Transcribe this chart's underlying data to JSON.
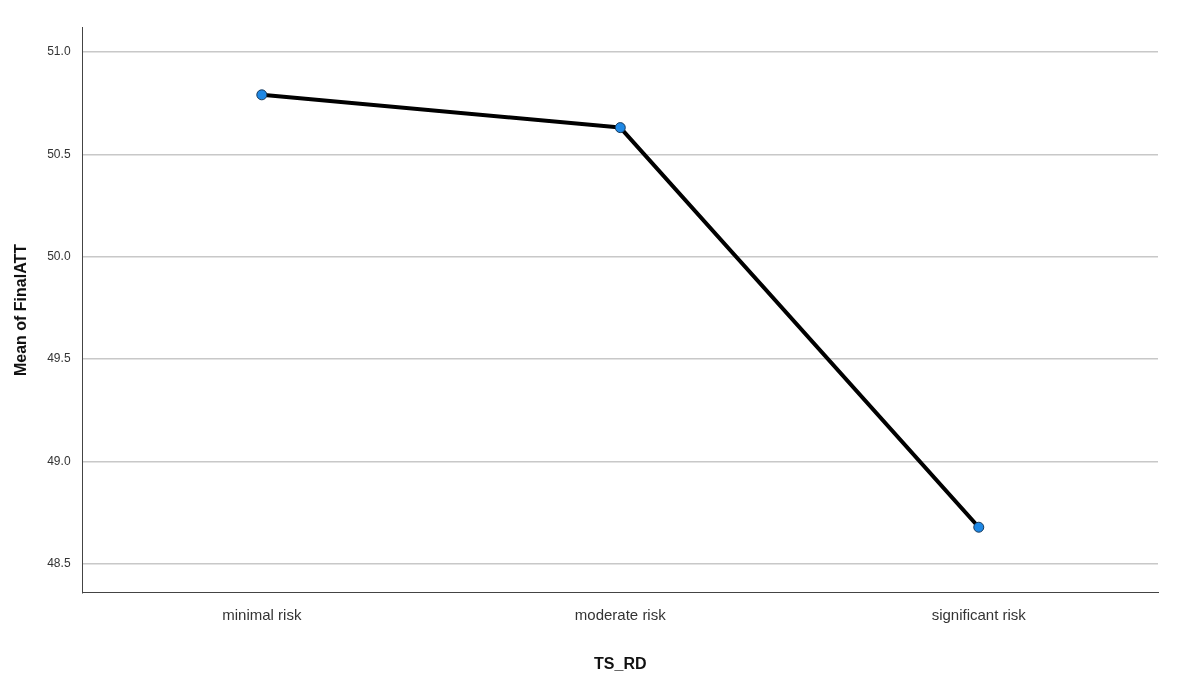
{
  "chart_data": {
    "type": "line",
    "xlabel": "TS_RD",
    "ylabel": "Mean of FinalATT",
    "categories": [
      "minimal risk",
      "moderate risk",
      "significant risk"
    ],
    "series": [
      {
        "color": "#000000",
        "values": [
          50.79,
          50.63,
          48.68
        ]
      }
    ],
    "ylim": [
      48.36,
      51.12
    ],
    "yticks": [
      48.5,
      {
        "value": 49,
        "label": "49.0"
      },
      49.5,
      {
        "value": 50,
        "label": "50.0"
      },
      50.5,
      {
        "value": 51,
        "label": "51.0"
      }
    ],
    "grid": "y",
    "marker": "circle",
    "line_style": "solid"
  }
}
